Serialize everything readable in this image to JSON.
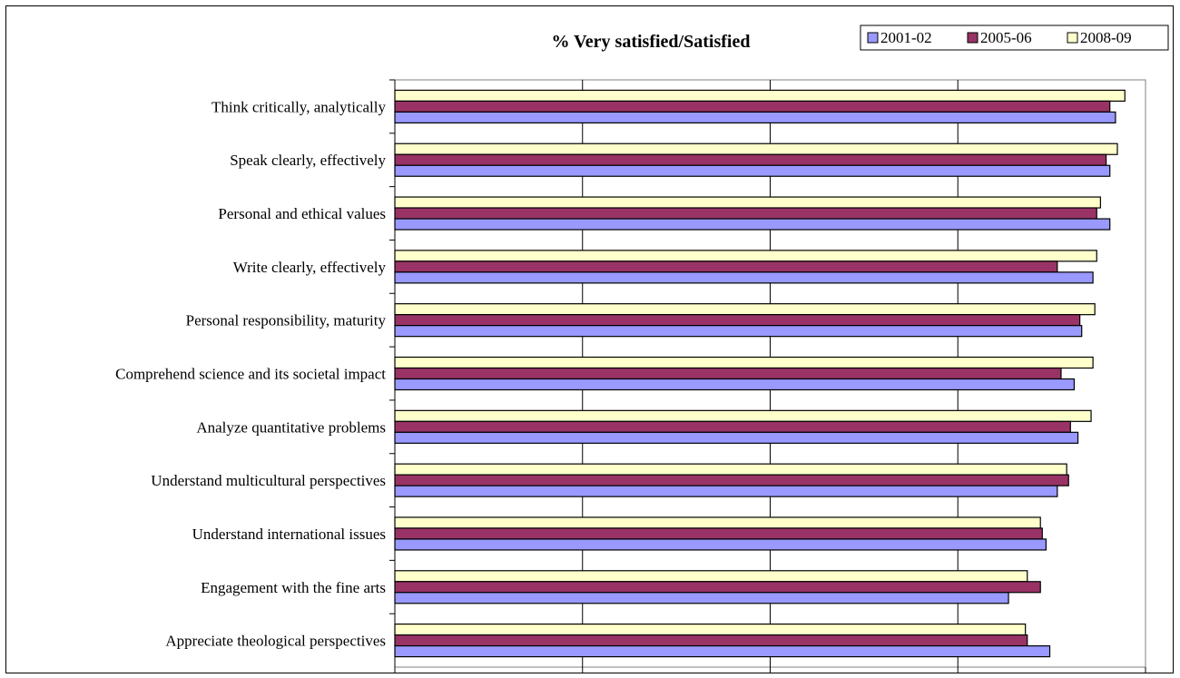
{
  "chart_data": {
    "type": "bar",
    "orientation": "horizontal",
    "title": "% Very satisfied/Satisfied",
    "xlabel": "",
    "ylabel": "",
    "xlim": [
      60,
      100
    ],
    "x_ticks": [
      "60%",
      "70%",
      "80%",
      "90%",
      "100%"
    ],
    "grid": "vertical",
    "legend_position": "top-right",
    "categories": [
      "Think critically, analytically",
      "Speak clearly, effectively",
      "Personal and ethical values",
      "Write clearly, effectively",
      "Personal responsibility, maturity",
      "Comprehend science and its societal impact",
      "Analyze quantitative problems",
      "Understand multicultural perspectives",
      "Understand international issues",
      "Engagement with the fine arts",
      "Appreciate theological perspectives"
    ],
    "series": [
      {
        "name": "2001-02",
        "color": "#9999ff",
        "values": [
          98.4,
          98.1,
          98.1,
          97.2,
          96.6,
          96.2,
          96.4,
          95.3,
          94.7,
          92.7,
          94.9
        ]
      },
      {
        "name": "2005-06",
        "color": "#993366",
        "values": [
          98.1,
          97.9,
          97.4,
          95.3,
          96.5,
          95.5,
          96.0,
          95.9,
          94.5,
          94.4,
          93.7
        ]
      },
      {
        "name": "2008-09",
        "color": "#ffffcc",
        "values": [
          98.9,
          98.5,
          97.6,
          97.4,
          97.3,
          97.2,
          97.1,
          95.8,
          94.4,
          93.7,
          93.6
        ]
      }
    ]
  }
}
